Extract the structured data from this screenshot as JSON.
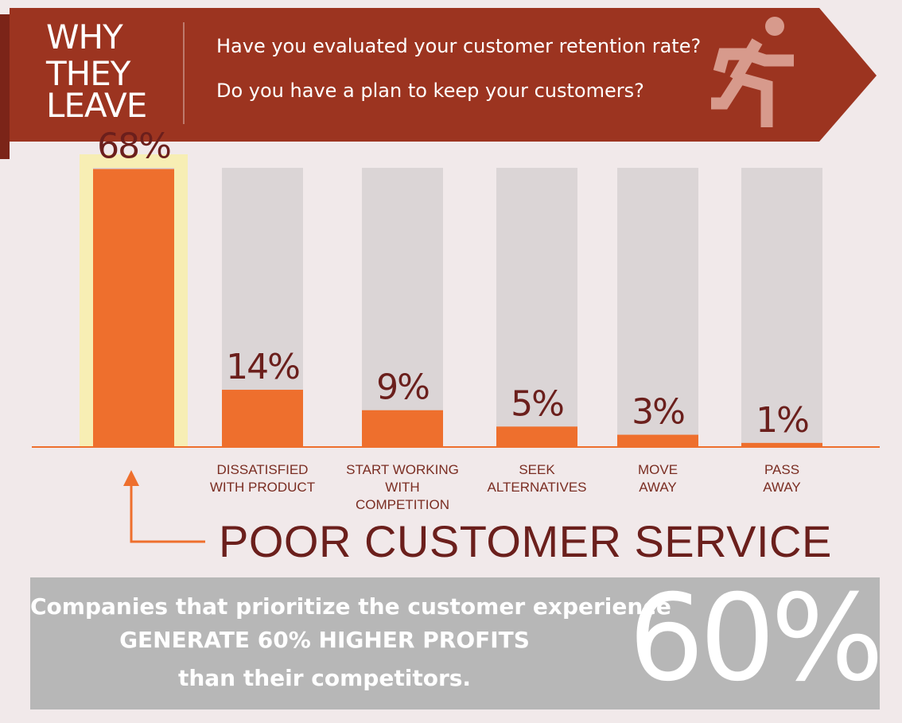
{
  "header": {
    "title_lines": [
      "WHY",
      "THEY",
      "LEAVE"
    ],
    "questions": [
      "Have you evaluated your customer retention rate?",
      "Do you have a plan to keep your customers?"
    ],
    "icon": "running-person-icon",
    "colors": {
      "banner": "#9c3420",
      "banner_dark": "#7b2418",
      "icon": "#d79a8c"
    }
  },
  "chart_data": {
    "type": "bar",
    "categories": [
      "POOR CUSTOMER SERVICE",
      "DISSATISFIED\nWITH PRODUCT",
      "START WORKING\nWITH COMPETITION",
      "SEEK\nALTERNATIVES",
      "MOVE\nAWAY",
      "PASS\nAWAY"
    ],
    "values": [
      68,
      14,
      9,
      5,
      3,
      1
    ],
    "value_labels": [
      "68%",
      "14%",
      "9%",
      "5%",
      "3%",
      "1%"
    ],
    "ylim": [
      0,
      100
    ],
    "highlighted_index": 0,
    "colors": {
      "fill": "#ee6f2d",
      "track": "#dbd5d6",
      "highlight": "#f7eeb4",
      "baseline": "#ee6f2d",
      "label": "#6b1f1c"
    }
  },
  "callout": {
    "text": "POOR CUSTOMER SERVICE",
    "arrow_color": "#ee6f2d"
  },
  "stat": {
    "lines": [
      "Companies that prioritize the customer experience",
      "GENERATE 60% HIGHER PROFITS",
      "than their competitors."
    ],
    "big_value": "60%",
    "colors": {
      "box": "#b7b7b7",
      "text": "#ffffff"
    }
  }
}
